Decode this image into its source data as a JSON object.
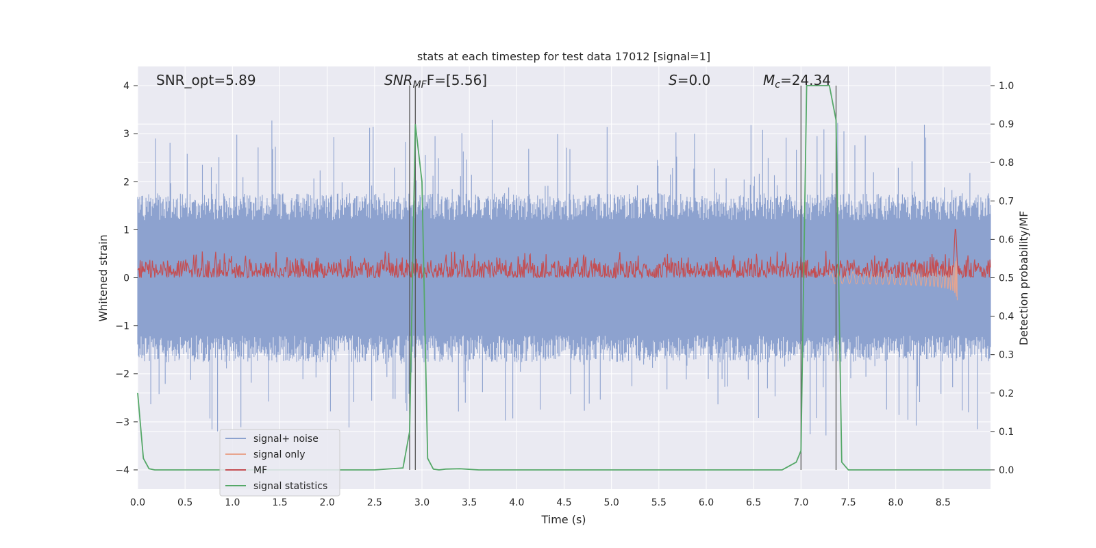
{
  "chart_data": {
    "type": "line",
    "title": "stats at each timestep for test data 17012 [signal=1]",
    "xlabel": "Time (s)",
    "ylabel_left": "Whitened strain",
    "ylabel_right": "Detection probability/MF",
    "xlim": [
      0.0,
      9.0
    ],
    "ylim_left": [
      -4.4,
      4.4
    ],
    "ylim_right": [
      -0.05,
      1.05
    ],
    "x_ticks": [
      0.0,
      0.5,
      1.0,
      1.5,
      2.0,
      2.5,
      3.0,
      3.5,
      4.0,
      4.5,
      5.0,
      5.5,
      6.0,
      6.5,
      7.0,
      7.5,
      8.0,
      8.5
    ],
    "x_tick_labels": [
      "0.0",
      "0.5",
      "1.0",
      "1.5",
      "2.0",
      "2.5",
      "3.0",
      "3.5",
      "4.0",
      "4.5",
      "5.0",
      "5.5",
      "6.0",
      "6.5",
      "7.0",
      "7.5",
      "8.0",
      "8.5"
    ],
    "y_left_ticks": [
      -4,
      -3,
      -2,
      -1,
      0,
      1,
      2,
      3,
      4
    ],
    "y_left_tick_labels": [
      "−4",
      "−3",
      "−2",
      "−1",
      "0",
      "1",
      "2",
      "3",
      "4"
    ],
    "y_right_ticks": [
      0.0,
      0.1,
      0.2,
      0.3,
      0.4,
      0.5,
      0.6,
      0.7,
      0.8,
      0.9,
      1.0
    ],
    "y_right_tick_labels": [
      "0.0",
      "0.1",
      "0.2",
      "0.3",
      "0.4",
      "0.5",
      "0.6",
      "0.7",
      "0.8",
      "0.9",
      "1.0"
    ],
    "annotations": {
      "snr_opt": "SNR_opt=5.89",
      "snr_mf_main": "SNR",
      "snr_mf_sub": "MF",
      "snr_mf_rest": "F=[5.56]",
      "s_italic": "S",
      "s_rest": "=0.0",
      "mc_main": "M",
      "mc_sub": "c",
      "mc_rest": "=24.34"
    },
    "vertical_markers": [
      2.87,
      2.93,
      7.0,
      7.37
    ],
    "noise_envelope": {
      "typical_amplitude": 1.6,
      "peak_amplitude": 3.3,
      "t_start": 0.0,
      "t_end": 9.0
    },
    "signal_only": {
      "t_start": 7.3,
      "t_merger": 8.65,
      "peak_amplitude": 1.3
    },
    "mf_series": {
      "baseline": 0.5,
      "typical_max": 0.56,
      "peak_time": 8.63,
      "peak_value": 0.63
    },
    "signal_statistics": {
      "t": [
        0.0,
        0.06,
        0.12,
        0.18,
        0.25,
        0.4,
        2.5,
        2.8,
        2.87,
        2.93,
        3.0,
        3.06,
        3.12,
        3.18,
        3.25,
        3.4,
        3.6,
        6.8,
        6.95,
        7.0,
        7.06,
        7.12,
        7.3,
        7.37,
        7.43,
        7.5,
        9.0
      ],
      "values": [
        0.2,
        0.03,
        0.003,
        0.0,
        0.0,
        0.0,
        0.0,
        0.005,
        0.1,
        0.9,
        0.75,
        0.03,
        0.002,
        0.0,
        0.002,
        0.003,
        0.0,
        0.0,
        0.02,
        0.05,
        1.0,
        1.0,
        1.0,
        0.91,
        0.02,
        0.0,
        0.0
      ]
    },
    "legend": {
      "position": "lower-left",
      "items": [
        {
          "label": "signal+ noise",
          "color": "#8da2cf"
        },
        {
          "label": "signal only",
          "color": "#e8a58e"
        },
        {
          "label": "MF",
          "color": "#c44e52"
        },
        {
          "label": "signal statistics",
          "color": "#55a868"
        }
      ]
    },
    "colors": {
      "plot_background": "#eaeaf2",
      "grid": "#ffffff",
      "noise": "#8da2cf",
      "signal": "#e8a58e",
      "mf": "#c44e52",
      "stat": "#55a868",
      "marker": "#555555"
    }
  }
}
